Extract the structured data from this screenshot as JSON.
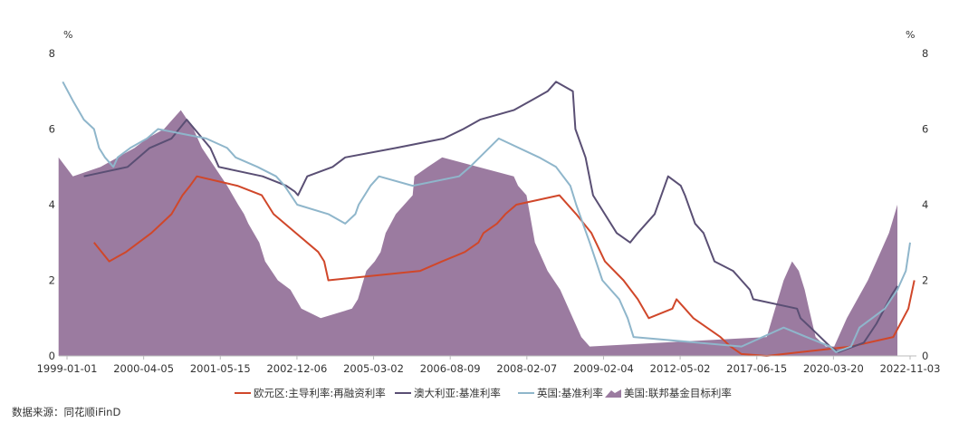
{
  "chart_data": {
    "type": "line",
    "y_unit_left": "%",
    "y_unit_right": "%",
    "ylim": [
      0,
      8
    ],
    "y_ticks": [
      "0",
      "2",
      "4",
      "6",
      "8"
    ],
    "x_tick_labels": [
      "1999-01-01",
      "2000-04-05",
      "2001-05-15",
      "2002-12-06",
      "2005-03-02",
      "2006-08-09",
      "2008-02-07",
      "2009-02-04",
      "2012-05-02",
      "2017-06-15",
      "2020-03-20",
      "2022-11-03"
    ],
    "x_domain": [
      0.0,
      1.0
    ],
    "x_note": "x values are positions along the category axis, 0 = first tick label, 1 = last tick label",
    "colors": {
      "ecb": "#d0472a",
      "aus": "#5a4f74",
      "uk": "#8fb6cb",
      "us": "#9b7ba0"
    },
    "series": [
      {
        "name": "欧元区:主导利率:再融资利率",
        "key": "ecb",
        "kind": "line",
        "points": [
          [
            0.032,
            3.0
          ],
          [
            0.05,
            2.5
          ],
          [
            0.07,
            2.75
          ],
          [
            0.1,
            3.25
          ],
          [
            0.112,
            3.5
          ],
          [
            0.124,
            3.75
          ],
          [
            0.137,
            4.25
          ],
          [
            0.146,
            4.5
          ],
          [
            0.154,
            4.75
          ],
          [
            0.202,
            4.5
          ],
          [
            0.231,
            4.25
          ],
          [
            0.245,
            3.75
          ],
          [
            0.298,
            2.75
          ],
          [
            0.305,
            2.5
          ],
          [
            0.31,
            2.0
          ],
          [
            0.419,
            2.25
          ],
          [
            0.445,
            2.5
          ],
          [
            0.472,
            2.75
          ],
          [
            0.488,
            3.0
          ],
          [
            0.494,
            3.25
          ],
          [
            0.51,
            3.5
          ],
          [
            0.52,
            3.75
          ],
          [
            0.533,
            4.0
          ],
          [
            0.584,
            4.25
          ],
          [
            0.604,
            3.75
          ],
          [
            0.622,
            3.25
          ],
          [
            0.638,
            2.5
          ],
          [
            0.66,
            2.0
          ],
          [
            0.677,
            1.5
          ],
          [
            0.69,
            1.0
          ],
          [
            0.718,
            1.25
          ],
          [
            0.723,
            1.5
          ],
          [
            0.733,
            1.25
          ],
          [
            0.743,
            1.0
          ],
          [
            0.775,
            0.5
          ],
          [
            0.787,
            0.25
          ],
          [
            0.8,
            0.05
          ],
          [
            0.83,
            0.0
          ],
          [
            0.93,
            0.25
          ],
          [
            0.98,
            0.5
          ],
          [
            0.998,
            1.25
          ],
          [
            1.005,
            2.0
          ]
        ]
      },
      {
        "name": "澳大利亚:基准利率",
        "key": "aus",
        "kind": "line",
        "points": [
          [
            0.02,
            4.75
          ],
          [
            0.072,
            5.0
          ],
          [
            0.098,
            5.5
          ],
          [
            0.124,
            5.75
          ],
          [
            0.142,
            6.25
          ],
          [
            0.17,
            5.5
          ],
          [
            0.18,
            5.0
          ],
          [
            0.232,
            4.75
          ],
          [
            0.26,
            4.5
          ],
          [
            0.27,
            4.35
          ],
          [
            0.274,
            4.25
          ],
          [
            0.285,
            4.75
          ],
          [
            0.315,
            5.0
          ],
          [
            0.33,
            5.25
          ],
          [
            0.39,
            5.5
          ],
          [
            0.447,
            5.75
          ],
          [
            0.47,
            6.0
          ],
          [
            0.49,
            6.25
          ],
          [
            0.53,
            6.5
          ],
          [
            0.55,
            6.75
          ],
          [
            0.57,
            7.0
          ],
          [
            0.58,
            7.25
          ],
          [
            0.6,
            7.0
          ],
          [
            0.603,
            6.0
          ],
          [
            0.615,
            5.25
          ],
          [
            0.624,
            4.25
          ],
          [
            0.652,
            3.25
          ],
          [
            0.668,
            3.0
          ],
          [
            0.677,
            3.25
          ],
          [
            0.697,
            3.75
          ],
          [
            0.713,
            4.75
          ],
          [
            0.728,
            4.5
          ],
          [
            0.733,
            4.25
          ],
          [
            0.745,
            3.5
          ],
          [
            0.755,
            3.25
          ],
          [
            0.768,
            2.5
          ],
          [
            0.79,
            2.25
          ],
          [
            0.8,
            2.0
          ],
          [
            0.81,
            1.75
          ],
          [
            0.814,
            1.5
          ],
          [
            0.866,
            1.25
          ],
          [
            0.87,
            1.0
          ],
          [
            0.882,
            0.75
          ],
          [
            0.905,
            0.25
          ],
          [
            0.915,
            0.1
          ],
          [
            0.945,
            0.35
          ],
          [
            0.96,
            0.85
          ],
          [
            0.978,
            1.6
          ],
          [
            0.985,
            1.85
          ]
        ]
      },
      {
        "name": "英国:基准利率",
        "key": "uk",
        "kind": "line",
        "points": [
          [
            -0.005,
            7.25
          ],
          [
            0.007,
            6.75
          ],
          [
            0.02,
            6.25
          ],
          [
            0.032,
            6.0
          ],
          [
            0.038,
            5.5
          ],
          [
            0.045,
            5.25
          ],
          [
            0.055,
            5.0
          ],
          [
            0.06,
            5.25
          ],
          [
            0.075,
            5.5
          ],
          [
            0.095,
            5.75
          ],
          [
            0.108,
            6.0
          ],
          [
            0.165,
            5.75
          ],
          [
            0.19,
            5.5
          ],
          [
            0.2,
            5.25
          ],
          [
            0.226,
            5.0
          ],
          [
            0.248,
            4.75
          ],
          [
            0.258,
            4.5
          ],
          [
            0.273,
            4.0
          ],
          [
            0.31,
            3.75
          ],
          [
            0.33,
            3.5
          ],
          [
            0.342,
            3.75
          ],
          [
            0.346,
            4.0
          ],
          [
            0.36,
            4.5
          ],
          [
            0.37,
            4.75
          ],
          [
            0.41,
            4.5
          ],
          [
            0.465,
            4.75
          ],
          [
            0.478,
            5.0
          ],
          [
            0.512,
            5.75
          ],
          [
            0.56,
            5.25
          ],
          [
            0.58,
            5.0
          ],
          [
            0.597,
            4.5
          ],
          [
            0.604,
            4.0
          ],
          [
            0.62,
            3.0
          ],
          [
            0.635,
            2.0
          ],
          [
            0.655,
            1.5
          ],
          [
            0.665,
            1.0
          ],
          [
            0.672,
            0.5
          ],
          [
            0.8,
            0.25
          ],
          [
            0.85,
            0.75
          ],
          [
            0.877,
            0.5
          ],
          [
            0.905,
            0.25
          ],
          [
            0.912,
            0.1
          ],
          [
            0.93,
            0.25
          ],
          [
            0.94,
            0.75
          ],
          [
            0.955,
            1.0
          ],
          [
            0.97,
            1.25
          ],
          [
            0.985,
            1.75
          ],
          [
            0.995,
            2.25
          ],
          [
            1.0,
            3.0
          ]
        ]
      },
      {
        "name": "美国:联邦基金目标利率",
        "key": "us",
        "kind": "area",
        "points": [
          [
            -0.01,
            5.25
          ],
          [
            0.007,
            4.75
          ],
          [
            0.04,
            5.0
          ],
          [
            0.06,
            5.25
          ],
          [
            0.08,
            5.5
          ],
          [
            0.095,
            5.75
          ],
          [
            0.115,
            6.0
          ],
          [
            0.135,
            6.5
          ],
          [
            0.15,
            6.0
          ],
          [
            0.16,
            5.5
          ],
          [
            0.19,
            4.5
          ],
          [
            0.203,
            4.0
          ],
          [
            0.21,
            3.75
          ],
          [
            0.215,
            3.5
          ],
          [
            0.228,
            3.0
          ],
          [
            0.235,
            2.5
          ],
          [
            0.25,
            2.0
          ],
          [
            0.265,
            1.75
          ],
          [
            0.278,
            1.25
          ],
          [
            0.301,
            1.0
          ],
          [
            0.338,
            1.25
          ],
          [
            0.345,
            1.5
          ],
          [
            0.355,
            2.25
          ],
          [
            0.365,
            2.5
          ],
          [
            0.372,
            2.75
          ],
          [
            0.378,
            3.25
          ],
          [
            0.39,
            3.75
          ],
          [
            0.41,
            4.25
          ],
          [
            0.412,
            4.75
          ],
          [
            0.428,
            5.0
          ],
          [
            0.445,
            5.25
          ],
          [
            0.53,
            4.75
          ],
          [
            0.535,
            4.5
          ],
          [
            0.545,
            4.25
          ],
          [
            0.555,
            3.0
          ],
          [
            0.57,
            2.25
          ],
          [
            0.585,
            1.75
          ],
          [
            0.59,
            1.5
          ],
          [
            0.6,
            1.0
          ],
          [
            0.61,
            0.5
          ],
          [
            0.62,
            0.25
          ],
          [
            0.83,
            0.5
          ],
          [
            0.84,
            1.25
          ],
          [
            0.85,
            2.0
          ],
          [
            0.86,
            2.5
          ],
          [
            0.868,
            2.25
          ],
          [
            0.875,
            1.75
          ],
          [
            0.88,
            1.25
          ],
          [
            0.888,
            0.5
          ],
          [
            0.9,
            0.25
          ],
          [
            0.91,
            0.25
          ],
          [
            0.915,
            0.5
          ],
          [
            0.925,
            1.0
          ],
          [
            0.95,
            2.0
          ],
          [
            0.96,
            2.5
          ],
          [
            0.975,
            3.25
          ],
          [
            0.985,
            4.0
          ]
        ]
      }
    ],
    "legend_placement": "bottom-center",
    "source_note": "数据来源：同花顺iFinD"
  }
}
